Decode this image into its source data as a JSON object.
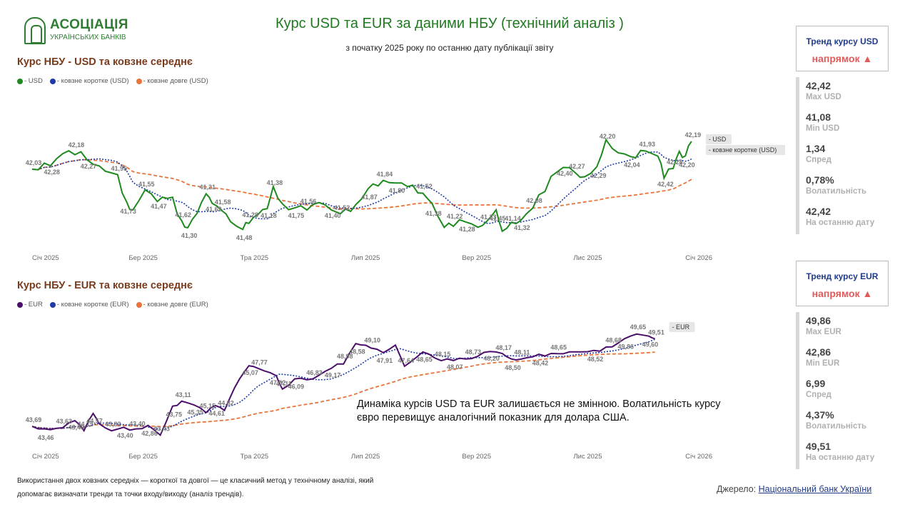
{
  "logo": {
    "title": "АСОЦІАЦІЯ",
    "subtitle": "УКРАЇНСЬКИХ БАНКІВ"
  },
  "title": "Курс USD та EUR за даними НБУ (технічний аналіз )",
  "subtitle": "з початку 2025 року по останню  дату публікації звіту",
  "usd_section": {
    "title": "Курс НБУ - USD та  ковзне середнє",
    "legend": [
      "- USD",
      "- ковзне коротке (USD)",
      "- ковзне довге (USD)"
    ],
    "tags": [
      "- USD",
      "- ковзне коротке (USD)"
    ]
  },
  "eur_section": {
    "title": "Курс НБУ - EUR та  ковзне середнє",
    "legend": [
      "- EUR",
      "- ковзне коротке (EUR)",
      "- ковзне довге (EUR)"
    ],
    "tags": [
      "- EUR"
    ]
  },
  "usd_panel": {
    "trend_title": "Тренд курсу USD",
    "trend_value": "напрямок ▲",
    "stats": [
      {
        "value": "42,42",
        "label": "Max USD"
      },
      {
        "value": "41,08",
        "label": "Min USD"
      },
      {
        "value": "1,34",
        "label": "Спред"
      },
      {
        "value": "0,78%",
        "label": "Волатильність"
      },
      {
        "value": "42,42",
        "label": "На останню дату"
      }
    ]
  },
  "eur_panel": {
    "trend_title": "Тренд курсу EUR",
    "trend_value": "напрямок ▲",
    "stats": [
      {
        "value": "49,86",
        "label": "Max EUR"
      },
      {
        "value": "42,86",
        "label": "Min EUR"
      },
      {
        "value": "6,99",
        "label": "Спред"
      },
      {
        "value": "4,37%",
        "label": "Волатильність"
      },
      {
        "value": "49,51",
        "label": "На останню дату"
      }
    ]
  },
  "comment": "Динаміка курсів USD та EUR залишається не змінною. Волатильність курсу євро перевищує аналогічний показник для долара США.",
  "footer_note": "Використання двох ковзних середніх — короткої  та довгої — це класичний метод у технічному аналізі, який допомагає визначати тренди та точки входу/виходу (аналіз трендів).",
  "source": {
    "prefix": "Джерело:",
    "link": "Національний банк України"
  },
  "colors": {
    "usd": "#1e8a1e",
    "eur": "#4b0f6b",
    "short_ma": "#1f3aa8",
    "long_ma": "#e8743b"
  },
  "chart_data": [
    {
      "type": "line",
      "title": "Курс НБУ - USD та  ковзне середнє",
      "x_ticks": [
        "Січ 2025",
        "Бер 2025",
        "Тра 2025",
        "Лип 2025",
        "Вер 2025",
        "Лис 2025",
        "Січ 2026"
      ],
      "ylim": [
        40.9,
        42.7
      ],
      "series_names": [
        "- USD",
        "- ковзне коротке (USD)",
        "- ковзне довге (USD)"
      ],
      "anchors": [
        [
          0.0,
          42.03
        ],
        [
          0.3,
          42.1
        ],
        [
          0.5,
          42.25
        ],
        [
          0.7,
          42.28
        ],
        [
          0.9,
          42.18
        ],
        [
          1.1,
          42.05
        ],
        [
          1.4,
          41.95
        ],
        [
          1.55,
          41.55
        ],
        [
          1.65,
          41.47
        ],
        [
          1.85,
          41.73
        ],
        [
          2.05,
          41.62
        ],
        [
          2.3,
          41.62
        ],
        [
          2.45,
          41.3
        ],
        [
          2.55,
          41.21
        ],
        [
          2.7,
          41.45
        ],
        [
          2.85,
          41.69
        ],
        [
          2.95,
          41.58
        ],
        [
          3.1,
          41.48
        ],
        [
          3.25,
          41.28
        ],
        [
          3.45,
          41.18
        ],
        [
          3.55,
          41.3
        ],
        [
          3.7,
          41.38
        ],
        [
          3.85,
          41.49
        ],
        [
          3.95,
          41.75
        ],
        [
          4.1,
          41.5
        ],
        [
          4.3,
          41.49
        ],
        [
          4.5,
          41.49
        ],
        [
          4.7,
          41.56
        ],
        [
          4.9,
          41.49
        ],
        [
          5.05,
          41.4
        ],
        [
          5.3,
          41.52
        ],
        [
          5.5,
          41.75
        ],
        [
          5.75,
          41.87
        ],
        [
          5.95,
          41.84
        ],
        [
          6.15,
          41.8
        ],
        [
          6.4,
          41.7
        ],
        [
          6.55,
          41.52
        ],
        [
          6.75,
          41.22
        ],
        [
          6.9,
          41.28
        ],
        [
          7.1,
          41.3
        ],
        [
          7.3,
          41.23
        ],
        [
          7.45,
          41.27
        ],
        [
          7.6,
          41.45
        ],
        [
          7.7,
          41.14
        ],
        [
          7.85,
          41.25
        ],
        [
          8.0,
          41.32
        ],
        [
          8.2,
          41.5
        ],
        [
          8.5,
          41.9
        ],
        [
          8.7,
          42.08
        ],
        [
          8.9,
          41.98
        ],
        [
          9.05,
          41.93
        ],
        [
          9.25,
          42.05
        ],
        [
          9.4,
          42.4
        ],
        [
          9.6,
          42.27
        ],
        [
          9.8,
          42.2
        ],
        [
          10.05,
          42.29
        ],
        [
          10.25,
          42.2
        ],
        [
          10.35,
          41.93
        ],
        [
          10.5,
          42.04
        ],
        [
          10.6,
          42.28
        ],
        [
          10.7,
          42.2
        ],
        [
          10.8,
          42.42
        ]
      ],
      "value_labels": [
        "42,03",
        "42,28",
        "42,18",
        "42,27",
        "41,95",
        "41,73",
        "41,55",
        "41,47",
        "41,62",
        "41,30",
        "41,21",
        "41,69",
        "41,58",
        "41,48",
        "41,28",
        "41,18",
        "41,38",
        "41,75",
        "41,56",
        "41,40",
        "41,52",
        "41,87",
        "41,84",
        "41,80",
        "41,52",
        "41,38",
        "41,22",
        "41,28",
        "41,23",
        "41,45",
        "41,14",
        "41,32",
        "42,08",
        "42,40",
        "42,27",
        "42,29",
        "42,20",
        "42,04",
        "41,93",
        "42,42",
        "42,28",
        "42,20",
        "42,19"
      ]
    },
    {
      "type": "line",
      "title": "Курс НБУ - EUR та  ковзне середнє",
      "x_ticks": [
        "Січ 2025",
        "Бер 2025",
        "Тра 2025",
        "Лип 2025",
        "Вер 2025",
        "Лис 2025",
        "Січ 2026"
      ],
      "ylim": [
        42.6,
        50.2
      ],
      "series_names": [
        "- EUR",
        "- ковзне коротке (EUR)",
        "- ковзне довге (EUR)"
      ],
      "anchors": [
        [
          0.0,
          43.69
        ],
        [
          0.2,
          43.46
        ],
        [
          0.5,
          43.6
        ],
        [
          0.7,
          44.15
        ],
        [
          0.85,
          43.4
        ],
        [
          1.0,
          44.57
        ],
        [
          1.1,
          43.82
        ],
        [
          1.3,
          43.4
        ],
        [
          1.5,
          43.6
        ],
        [
          1.7,
          43.43
        ],
        [
          1.9,
          43.75
        ],
        [
          2.1,
          43.11
        ],
        [
          2.3,
          45.0
        ],
        [
          2.45,
          45.35
        ],
        [
          2.65,
          45.15
        ],
        [
          2.85,
          44.61
        ],
        [
          3.0,
          45.07
        ],
        [
          3.15,
          44.82
        ],
        [
          3.4,
          46.9
        ],
        [
          3.55,
          47.77
        ],
        [
          3.7,
          47.52
        ],
        [
          4.0,
          47.11
        ],
        [
          4.1,
          46.09
        ],
        [
          4.3,
          46.85
        ],
        [
          4.6,
          46.83
        ],
        [
          4.9,
          47.6
        ],
        [
          5.1,
          47.91
        ],
        [
          5.3,
          49.17
        ],
        [
          5.55,
          48.98
        ],
        [
          5.75,
          48.58
        ],
        [
          5.95,
          49.1
        ],
        [
          6.1,
          47.64
        ],
        [
          6.4,
          48.65
        ],
        [
          6.7,
          48.07
        ],
        [
          6.9,
          48.15
        ],
        [
          7.2,
          48.2
        ],
        [
          7.5,
          48.73
        ],
        [
          7.7,
          48.5
        ],
        [
          7.85,
          48.11
        ],
        [
          8.0,
          48.17
        ],
        [
          8.3,
          48.42
        ],
        [
          8.6,
          48.52
        ],
        [
          8.9,
          48.65
        ],
        [
          9.2,
          48.68
        ],
        [
          9.5,
          49.0
        ],
        [
          9.7,
          49.5
        ],
        [
          9.9,
          49.86
        ],
        [
          10.1,
          49.65
        ],
        [
          10.2,
          49.51
        ]
      ],
      "value_labels": [
        "43,69",
        "43,46",
        "43,63",
        "43,48",
        "44,15",
        "44,57",
        "43,82",
        "43,40",
        "43,40",
        "42,86",
        "43,43",
        "43,75",
        "43,11",
        "45,35",
        "45,15",
        "44,61",
        "44,82",
        "45,07",
        "47,77",
        "47,52",
        "47,11",
        "46,09",
        "46,83",
        "49,17",
        "48,98",
        "48,58",
        "49,10",
        "47,91",
        "47,64",
        "48,65",
        "48,15",
        "48,07",
        "48,73",
        "48,20",
        "48,17",
        "48,50",
        "48,11",
        "48,42",
        "48,65",
        "48,52",
        "48,68",
        "49,86",
        "49,65",
        "49,60",
        "49,51"
      ]
    }
  ]
}
